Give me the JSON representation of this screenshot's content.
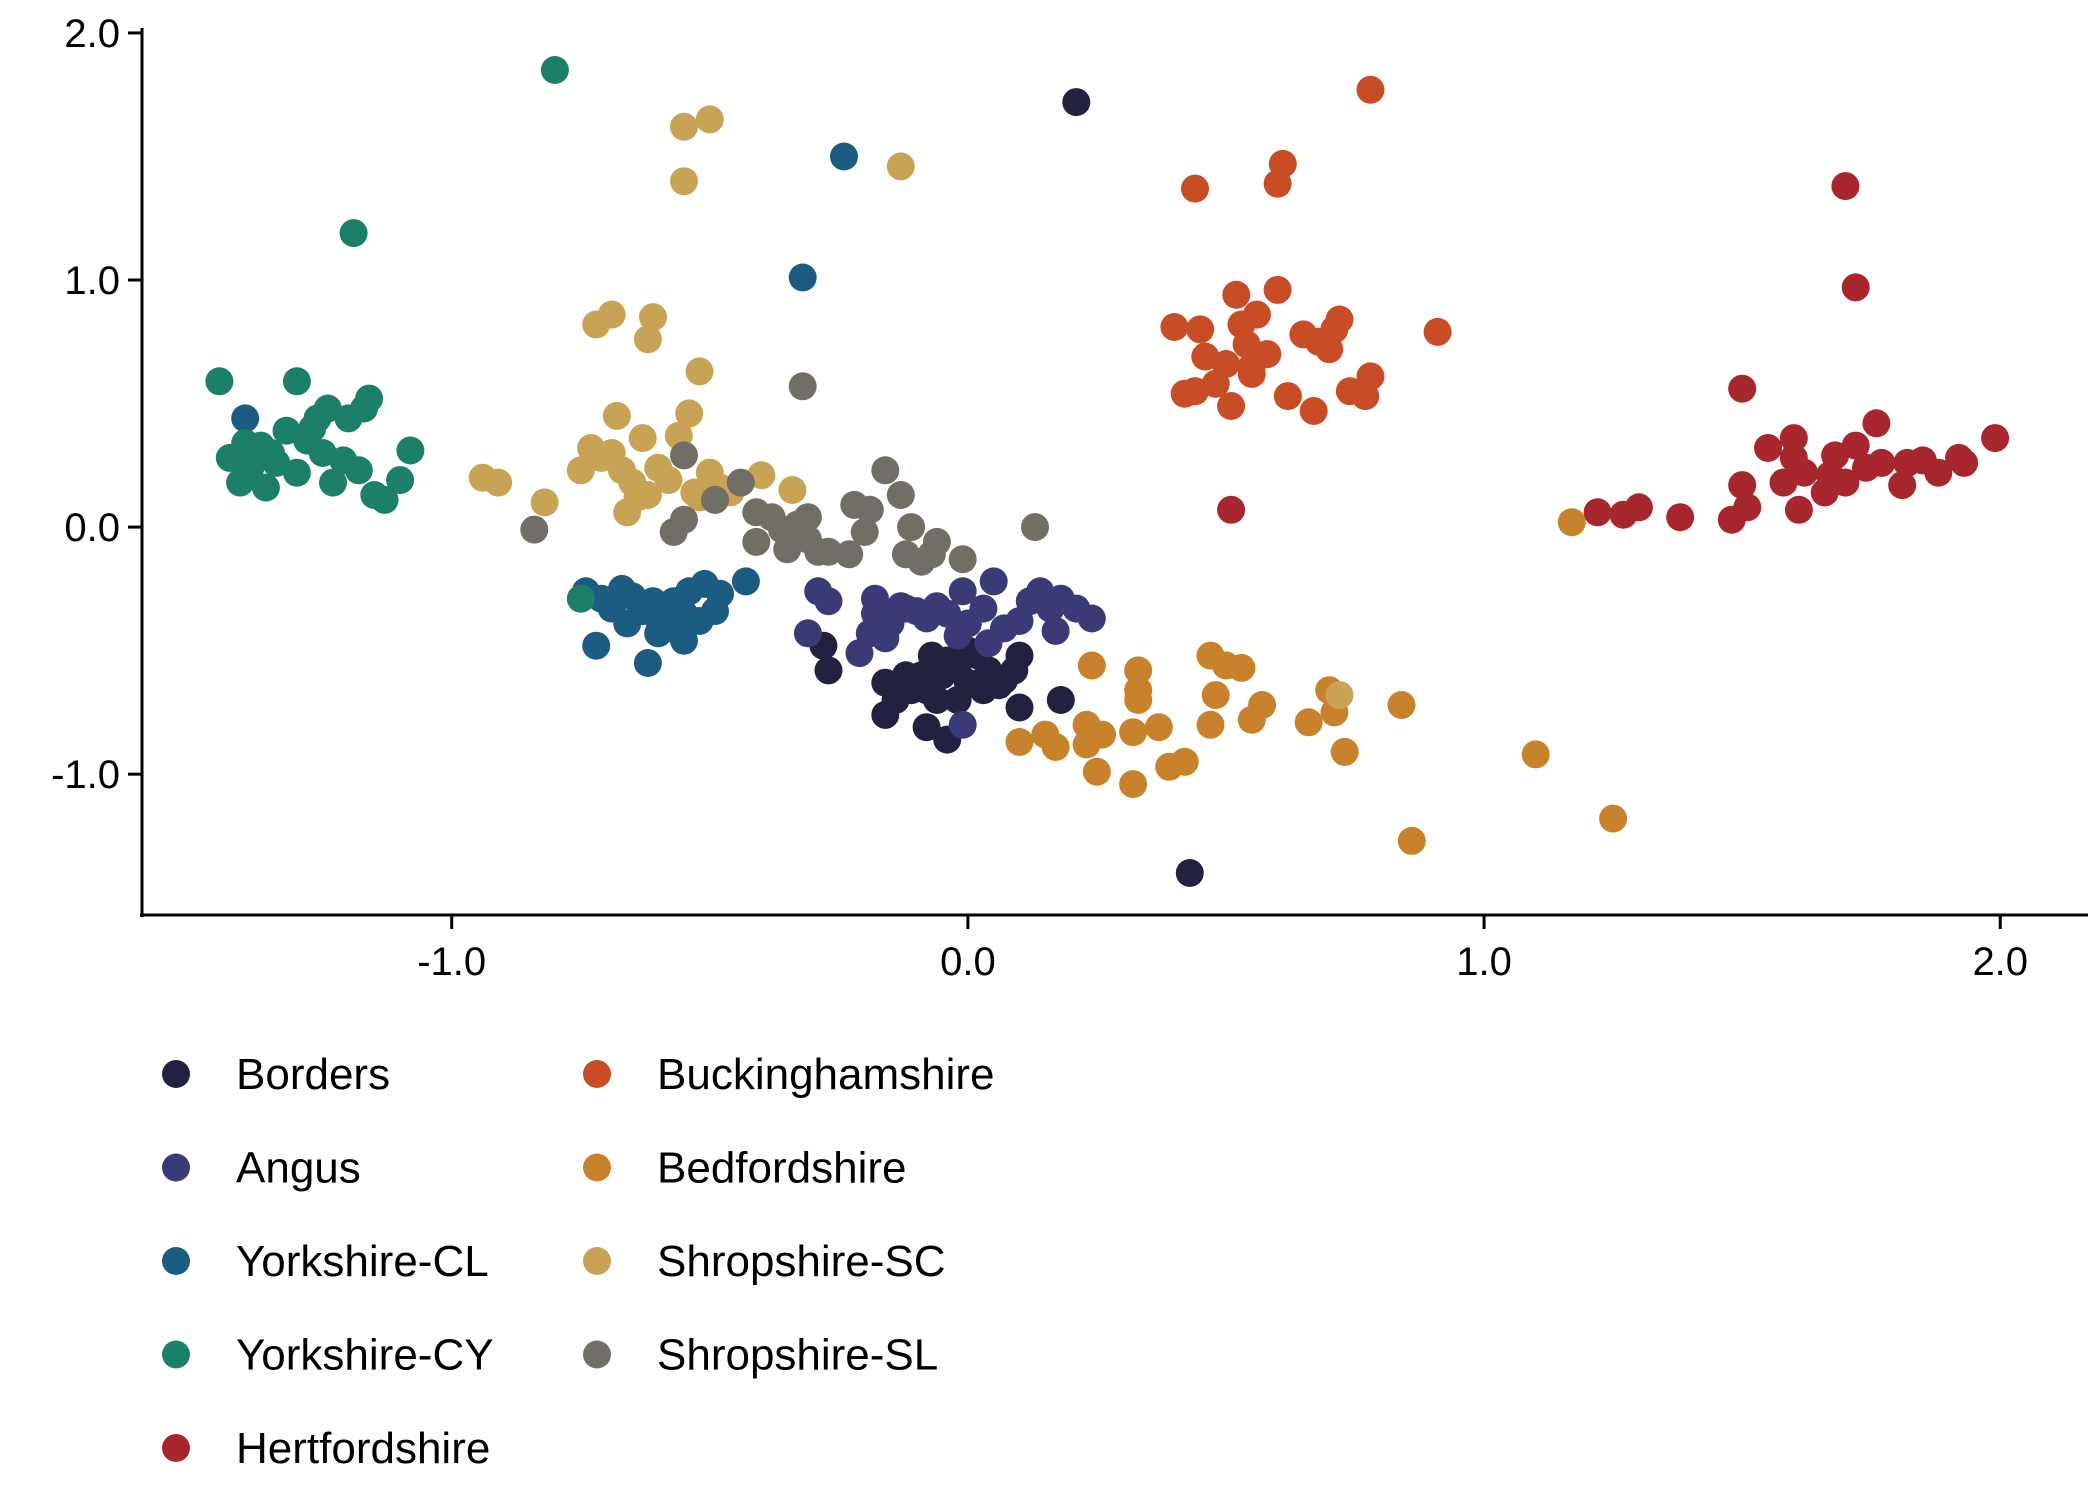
{
  "chart_data": {
    "type": "scatter",
    "title": "",
    "xlabel": "",
    "ylabel": "",
    "xlim": [
      -1.6,
      2.17
    ],
    "ylim": [
      -1.57,
      2.02
    ],
    "x_ticks": [
      -1.0,
      0.0,
      1.0,
      2.0
    ],
    "x_tick_labels": [
      "-1.0",
      "0.0",
      "1.0",
      "2.0"
    ],
    "y_ticks": [
      -1.0,
      0.0,
      1.0,
      2.0
    ],
    "y_tick_labels": [
      "-1.0",
      "0.0",
      "1.0",
      "2.0"
    ],
    "grid": false,
    "legend_position": "bottom-left",
    "series": [
      {
        "name": "Borders",
        "color": "#22213f",
        "points": [
          [
            0.21,
            1.72
          ],
          [
            -0.28,
            -0.48
          ],
          [
            -0.27,
            -0.58
          ],
          [
            -0.16,
            -0.63
          ],
          [
            -0.16,
            -0.76
          ],
          [
            -0.11,
            -0.66
          ],
          [
            -0.09,
            -0.6
          ],
          [
            -0.08,
            -0.66
          ],
          [
            -0.06,
            -0.7
          ],
          [
            -0.05,
            -0.6
          ],
          [
            -0.04,
            -0.54
          ],
          [
            -0.02,
            -0.56
          ],
          [
            0.0,
            -0.5
          ],
          [
            0.02,
            -0.52
          ],
          [
            0.0,
            -0.63
          ],
          [
            0.03,
            -0.66
          ],
          [
            0.06,
            -0.64
          ],
          [
            0.1,
            -0.52
          ],
          [
            0.09,
            -0.58
          ],
          [
            0.07,
            -0.62
          ],
          [
            -0.08,
            -0.81
          ],
          [
            -0.04,
            -0.86
          ],
          [
            0.1,
            -0.73
          ],
          [
            0.18,
            -0.7
          ],
          [
            0.43,
            -1.4
          ],
          [
            -0.12,
            -0.6
          ],
          [
            -0.14,
            -0.7
          ],
          [
            -0.02,
            -0.7
          ],
          [
            -0.07,
            -0.52
          ],
          [
            0.04,
            -0.58
          ]
        ]
      },
      {
        "name": "Angus",
        "color": "#393a76",
        "points": [
          [
            -0.31,
            -0.43
          ],
          [
            -0.29,
            -0.26
          ],
          [
            -0.27,
            -0.3
          ],
          [
            -0.21,
            -0.51
          ],
          [
            -0.19,
            -0.43
          ],
          [
            -0.18,
            -0.29
          ],
          [
            -0.18,
            -0.35
          ],
          [
            -0.15,
            -0.39
          ],
          [
            -0.13,
            -0.32
          ],
          [
            -0.12,
            -0.33
          ],
          [
            -0.1,
            -0.34
          ],
          [
            -0.08,
            -0.37
          ],
          [
            -0.06,
            -0.32
          ],
          [
            -0.04,
            -0.35
          ],
          [
            -0.01,
            -0.26
          ],
          [
            0.0,
            -0.39
          ],
          [
            0.03,
            -0.33
          ],
          [
            0.05,
            -0.22
          ],
          [
            0.07,
            -0.41
          ],
          [
            0.1,
            -0.38
          ],
          [
            0.12,
            -0.3
          ],
          [
            0.14,
            -0.26
          ],
          [
            0.16,
            -0.33
          ],
          [
            0.18,
            -0.29
          ],
          [
            0.21,
            -0.33
          ],
          [
            0.24,
            -0.37
          ],
          [
            -0.02,
            -0.44
          ],
          [
            0.04,
            -0.47
          ],
          [
            -0.16,
            -0.45
          ],
          [
            0.17,
            -0.42
          ],
          [
            -0.01,
            -0.8
          ]
        ]
      },
      {
        "name": "Yorkshire-CL",
        "color": "#1c5c82",
        "points": [
          [
            -1.4,
            0.44
          ],
          [
            -0.74,
            -0.26
          ],
          [
            -0.71,
            -0.29
          ],
          [
            -0.69,
            -0.33
          ],
          [
            -0.67,
            -0.25
          ],
          [
            -0.66,
            -0.39
          ],
          [
            -0.63,
            -0.34
          ],
          [
            -0.61,
            -0.3
          ],
          [
            -0.6,
            -0.37
          ],
          [
            -0.58,
            -0.41
          ],
          [
            -0.57,
            -0.3
          ],
          [
            -0.55,
            -0.35
          ],
          [
            -0.54,
            -0.26
          ],
          [
            -0.51,
            -0.23
          ],
          [
            -0.49,
            -0.34
          ],
          [
            -0.48,
            -0.27
          ],
          [
            -0.43,
            -0.22
          ],
          [
            -0.72,
            -0.48
          ],
          [
            -0.62,
            -0.55
          ],
          [
            -0.55,
            -0.46
          ],
          [
            -0.32,
            1.01
          ],
          [
            -0.24,
            1.5
          ],
          [
            -0.6,
            -0.43
          ],
          [
            -0.52,
            -0.38
          ],
          [
            -0.65,
            -0.28
          ]
        ]
      },
      {
        "name": "Yorkshire-CY",
        "color": "#1c7f68",
        "points": [
          [
            -0.8,
            1.85
          ],
          [
            -1.19,
            1.19
          ],
          [
            -1.45,
            0.59
          ],
          [
            -1.43,
            0.28
          ],
          [
            -1.41,
            0.18
          ],
          [
            -1.39,
            0.24
          ],
          [
            -1.37,
            0.33
          ],
          [
            -1.36,
            0.16
          ],
          [
            -1.34,
            0.26
          ],
          [
            -1.32,
            0.39
          ],
          [
            -1.3,
            0.59
          ],
          [
            -1.3,
            0.22
          ],
          [
            -1.28,
            0.35
          ],
          [
            -1.26,
            0.44
          ],
          [
            -1.25,
            0.3
          ],
          [
            -1.24,
            0.48
          ],
          [
            -1.23,
            0.18
          ],
          [
            -1.21,
            0.27
          ],
          [
            -1.2,
            0.44
          ],
          [
            -1.18,
            0.23
          ],
          [
            -1.17,
            0.48
          ],
          [
            -1.16,
            0.52
          ],
          [
            -1.15,
            0.13
          ],
          [
            -1.13,
            0.11
          ],
          [
            -1.1,
            0.19
          ],
          [
            -1.08,
            0.31
          ],
          [
            -0.75,
            -0.29
          ],
          [
            -1.4,
            0.34
          ],
          [
            -1.27,
            0.4
          ],
          [
            -1.35,
            0.3
          ]
        ]
      },
      {
        "name": "Hertfordshire",
        "color": "#a8262e",
        "points": [
          [
            0.51,
            0.07
          ],
          [
            1.22,
            0.06
          ],
          [
            1.27,
            0.05
          ],
          [
            1.3,
            0.08
          ],
          [
            1.38,
            0.04
          ],
          [
            1.48,
            0.03
          ],
          [
            1.51,
            0.08
          ],
          [
            1.5,
            0.17
          ],
          [
            1.5,
            0.56
          ],
          [
            1.55,
            0.32
          ],
          [
            1.58,
            0.18
          ],
          [
            1.6,
            0.28
          ],
          [
            1.6,
            0.36
          ],
          [
            1.62,
            0.22
          ],
          [
            1.66,
            0.14
          ],
          [
            1.67,
            0.21
          ],
          [
            1.68,
            0.29
          ],
          [
            1.7,
            0.18
          ],
          [
            1.72,
            0.33
          ],
          [
            1.74,
            0.24
          ],
          [
            1.76,
            0.42
          ],
          [
            1.77,
            0.26
          ],
          [
            1.81,
            0.17
          ],
          [
            1.82,
            0.26
          ],
          [
            1.85,
            0.27
          ],
          [
            1.88,
            0.22
          ],
          [
            1.92,
            0.28
          ],
          [
            1.93,
            0.26
          ],
          [
            1.99,
            0.36
          ],
          [
            1.7,
            1.38
          ],
          [
            1.72,
            0.97
          ],
          [
            1.61,
            0.07
          ]
        ]
      },
      {
        "name": "Buckinghamshire",
        "color": "#c84c26",
        "points": [
          [
            0.78,
            1.77
          ],
          [
            0.44,
            1.37
          ],
          [
            0.61,
            1.47
          ],
          [
            0.6,
            1.39
          ],
          [
            0.4,
            0.81
          ],
          [
            0.42,
            0.54
          ],
          [
            0.45,
            0.8
          ],
          [
            0.46,
            0.69
          ],
          [
            0.48,
            0.58
          ],
          [
            0.5,
            0.66
          ],
          [
            0.52,
            0.94
          ],
          [
            0.53,
            0.82
          ],
          [
            0.54,
            0.74
          ],
          [
            0.55,
            0.62
          ],
          [
            0.56,
            0.86
          ],
          [
            0.58,
            0.7
          ],
          [
            0.6,
            0.96
          ],
          [
            0.62,
            0.53
          ],
          [
            0.65,
            0.78
          ],
          [
            0.67,
            0.47
          ],
          [
            0.7,
            0.72
          ],
          [
            0.71,
            0.8
          ],
          [
            0.72,
            0.84
          ],
          [
            0.74,
            0.55
          ],
          [
            0.77,
            0.53
          ],
          [
            0.78,
            0.61
          ],
          [
            0.91,
            0.79
          ],
          [
            0.51,
            0.49
          ],
          [
            0.44,
            0.55
          ],
          [
            0.55,
            0.65
          ],
          [
            0.68,
            0.75
          ]
        ]
      },
      {
        "name": "Bedfordshire",
        "color": "#c8822b",
        "points": [
          [
            1.17,
            0.02
          ],
          [
            0.24,
            -0.56
          ],
          [
            0.33,
            -0.58
          ],
          [
            0.33,
            -0.66
          ],
          [
            0.47,
            -0.52
          ],
          [
            0.5,
            -0.56
          ],
          [
            0.53,
            -0.57
          ],
          [
            0.48,
            -0.68
          ],
          [
            0.57,
            -0.72
          ],
          [
            0.66,
            -0.79
          ],
          [
            0.7,
            -0.66
          ],
          [
            0.71,
            -0.75
          ],
          [
            0.1,
            -0.87
          ],
          [
            0.15,
            -0.84
          ],
          [
            0.17,
            -0.89
          ],
          [
            0.23,
            -0.8
          ],
          [
            0.23,
            -0.88
          ],
          [
            0.26,
            -0.84
          ],
          [
            0.32,
            -0.83
          ],
          [
            0.33,
            -0.7
          ],
          [
            0.37,
            -0.81
          ],
          [
            0.39,
            -0.97
          ],
          [
            0.42,
            -0.95
          ],
          [
            0.47,
            -0.8
          ],
          [
            0.55,
            -0.78
          ],
          [
            0.73,
            -0.91
          ],
          [
            0.25,
            -0.99
          ],
          [
            0.32,
            -1.04
          ],
          [
            0.84,
            -0.72
          ],
          [
            1.1,
            -0.92
          ],
          [
            0.86,
            -1.27
          ],
          [
            1.25,
            -1.18
          ]
        ]
      },
      {
        "name": "Shropshire-SC",
        "color": "#c8a356",
        "points": [
          [
            -0.55,
            1.62
          ],
          [
            -0.5,
            1.65
          ],
          [
            -0.55,
            1.4
          ],
          [
            -0.13,
            1.46
          ],
          [
            -0.72,
            0.82
          ],
          [
            -0.69,
            0.86
          ],
          [
            -0.61,
            0.85
          ],
          [
            -0.62,
            0.76
          ],
          [
            -0.52,
            0.63
          ],
          [
            -0.54,
            0.46
          ],
          [
            -0.56,
            0.37
          ],
          [
            -0.68,
            0.45
          ],
          [
            -0.63,
            0.36
          ],
          [
            -0.73,
            0.32
          ],
          [
            -0.71,
            0.28
          ],
          [
            -0.69,
            0.3
          ],
          [
            -0.67,
            0.23
          ],
          [
            -0.65,
            0.18
          ],
          [
            -0.64,
            0.12
          ],
          [
            -0.66,
            0.06
          ],
          [
            -0.6,
            0.24
          ],
          [
            -0.58,
            0.19
          ],
          [
            -0.53,
            0.14
          ],
          [
            -0.5,
            0.22
          ],
          [
            -0.48,
            0.16
          ],
          [
            -0.46,
            0.14
          ],
          [
            -0.4,
            0.21
          ],
          [
            -0.34,
            0.15
          ],
          [
            -0.94,
            0.2
          ],
          [
            -0.91,
            0.18
          ],
          [
            -0.82,
            0.1
          ],
          [
            -0.75,
            0.23
          ],
          [
            -0.52,
            0.12
          ],
          [
            0.72,
            -0.68
          ],
          [
            -0.62,
            0.13
          ]
        ]
      },
      {
        "name": "Shropshire-SL",
        "color": "#716e66",
        "points": [
          [
            -0.32,
            0.57
          ],
          [
            -0.55,
            0.29
          ],
          [
            -0.84,
            -0.01
          ],
          [
            -0.57,
            -0.02
          ],
          [
            -0.55,
            0.03
          ],
          [
            -0.49,
            0.11
          ],
          [
            -0.44,
            0.18
          ],
          [
            -0.41,
            -0.06
          ],
          [
            -0.41,
            0.06
          ],
          [
            -0.38,
            0.04
          ],
          [
            -0.36,
            -0.01
          ],
          [
            -0.35,
            -0.09
          ],
          [
            -0.33,
            0.01
          ],
          [
            -0.31,
            0.04
          ],
          [
            -0.29,
            -0.1
          ],
          [
            -0.27,
            -0.1
          ],
          [
            -0.23,
            -0.11
          ],
          [
            -0.22,
            0.09
          ],
          [
            -0.19,
            0.07
          ],
          [
            -0.16,
            0.23
          ],
          [
            -0.13,
            0.13
          ],
          [
            -0.12,
            -0.11
          ],
          [
            -0.11,
            0.0
          ],
          [
            -0.09,
            -0.14
          ],
          [
            -0.07,
            -0.11
          ],
          [
            -0.06,
            -0.06
          ],
          [
            -0.01,
            -0.13
          ],
          [
            0.13,
            0.0
          ],
          [
            -0.31,
            -0.05
          ],
          [
            -0.2,
            -0.02
          ]
        ]
      }
    ]
  }
}
